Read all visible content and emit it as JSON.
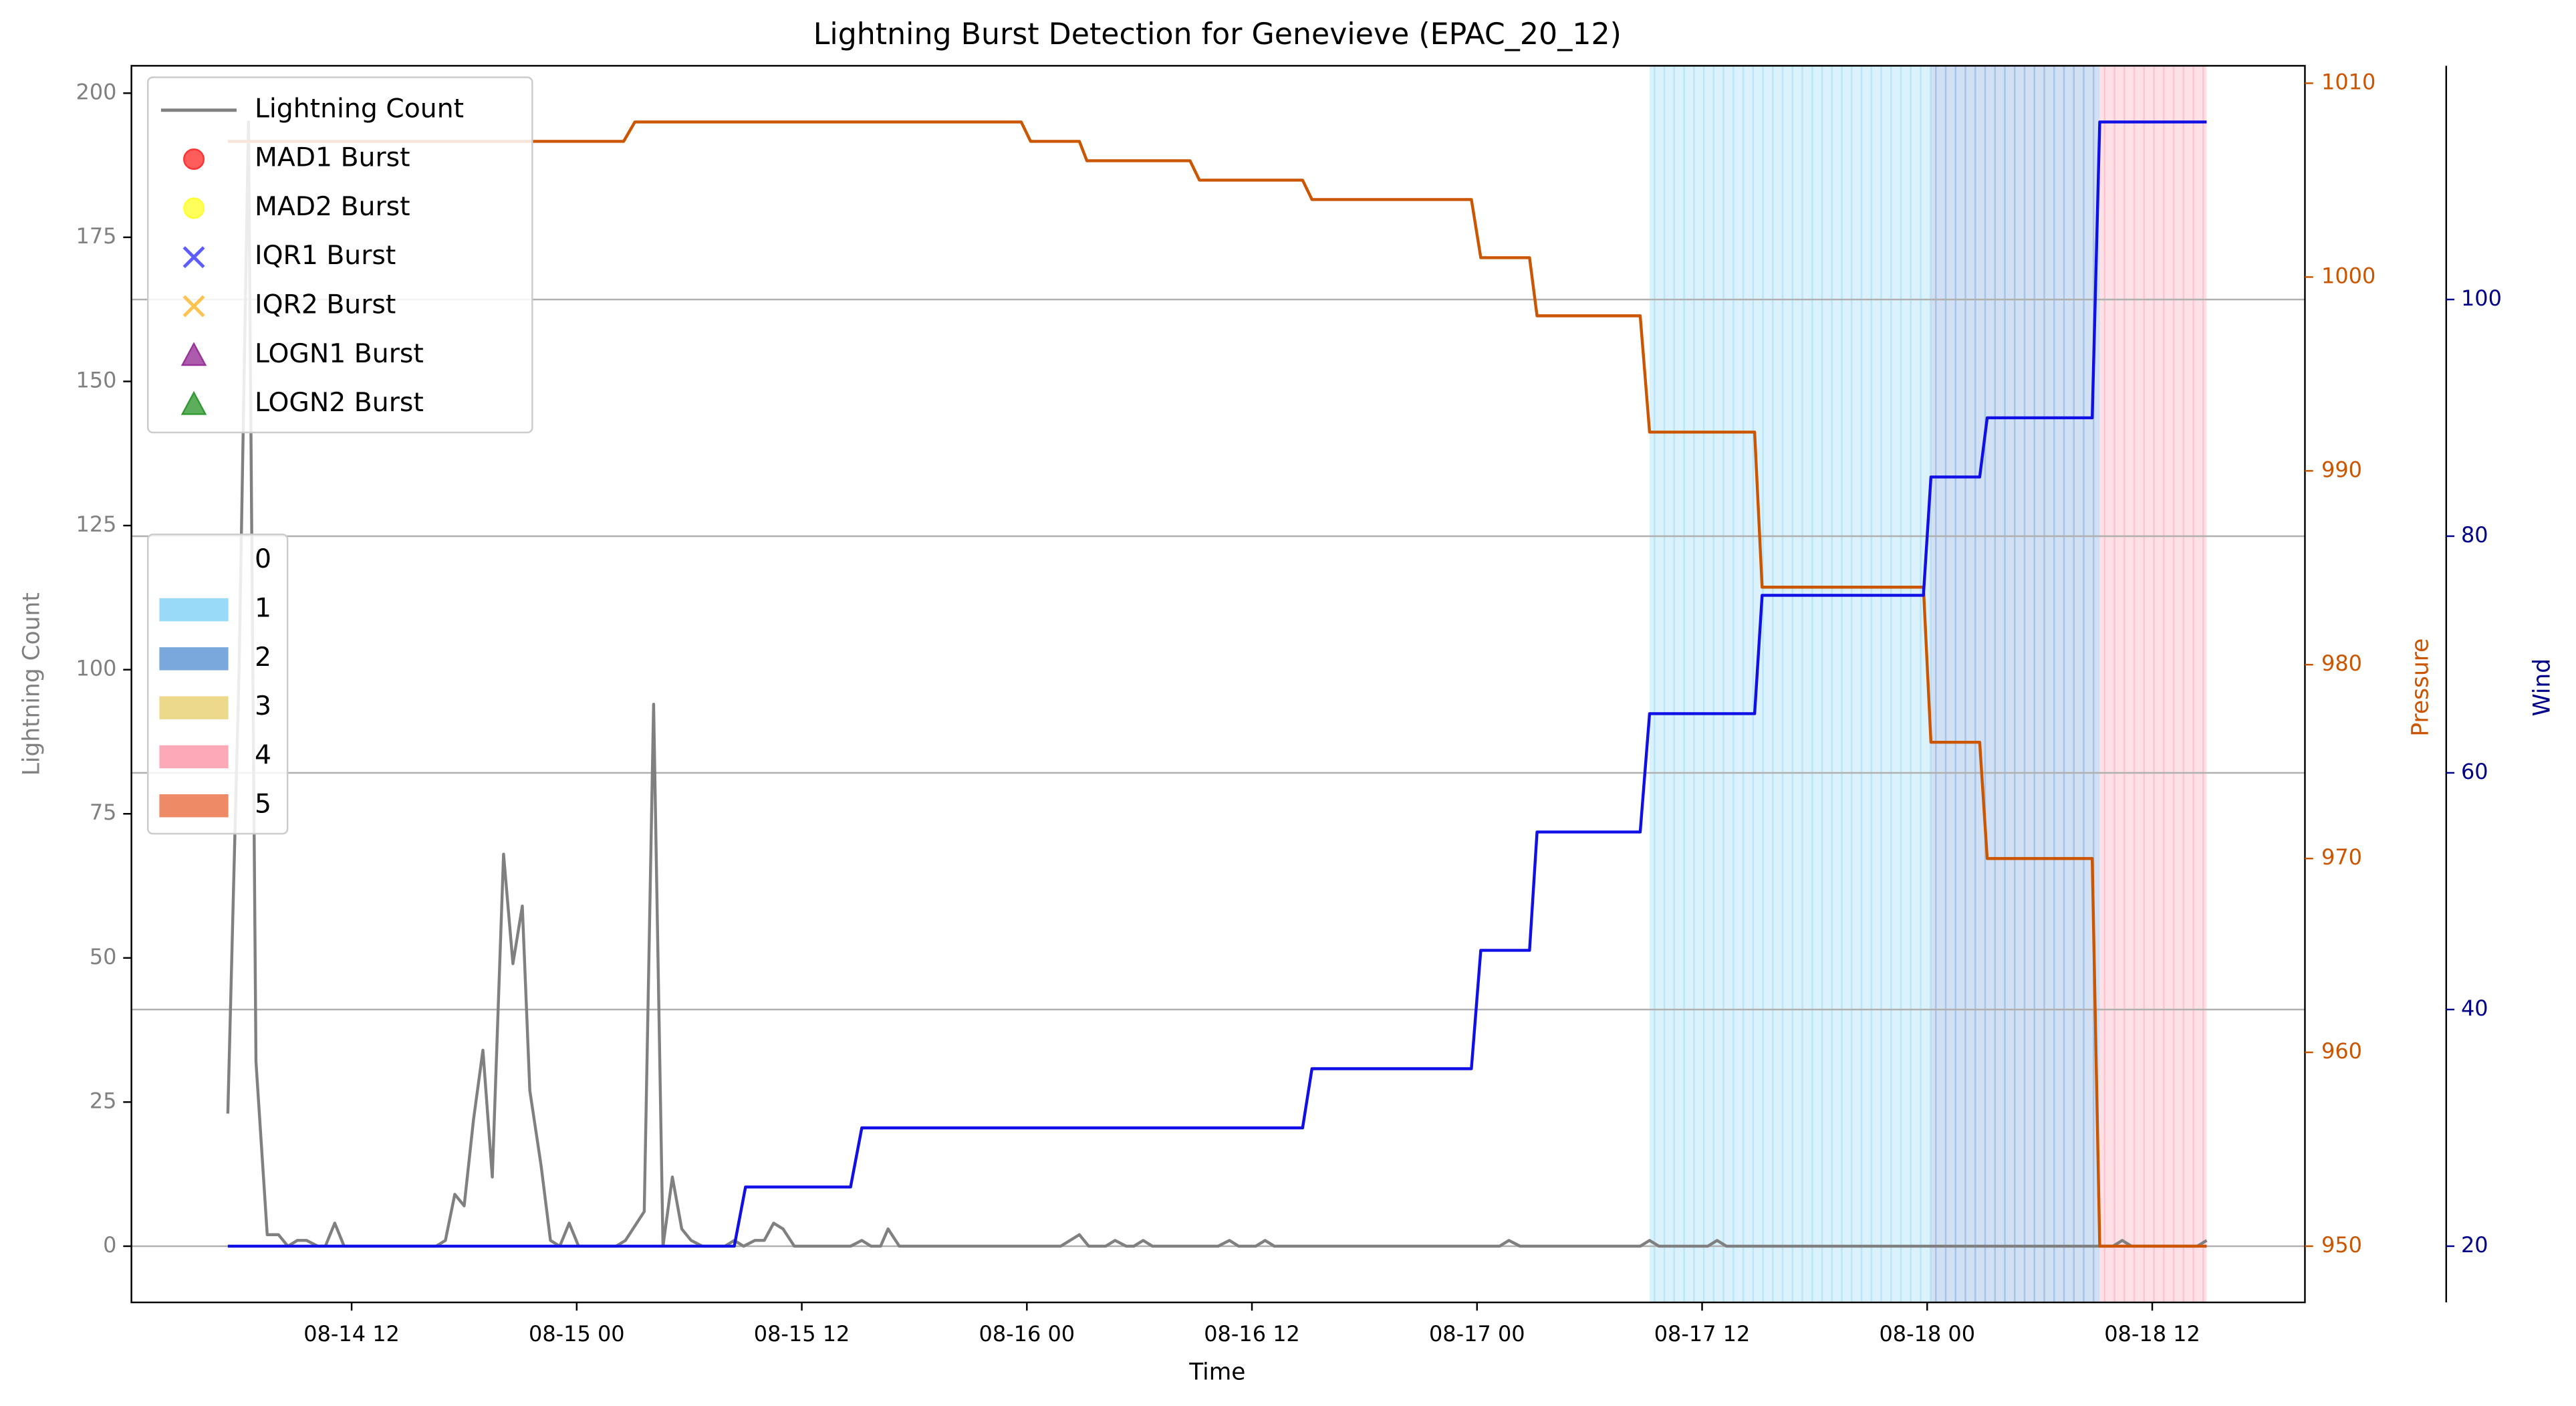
{
  "chart_data": {
    "type": "line",
    "title": "Lightning Burst Detection for Genevieve (EPAC_20_12)",
    "x_label": "Time",
    "y_label": "Lightning Count",
    "y2_label": "Pressure",
    "y3_label": "Wind",
    "xlim": [
      0.26,
      116.14
    ],
    "xticks": [
      {
        "value": 12,
        "label": "08-14 12"
      },
      {
        "value": 24,
        "label": "08-15 00"
      },
      {
        "value": 36,
        "label": "08-15 12"
      },
      {
        "value": 48,
        "label": "08-16 00"
      },
      {
        "value": 60,
        "label": "08-16 12"
      },
      {
        "value": 72,
        "label": "08-17 00"
      },
      {
        "value": 84,
        "label": "08-17 12"
      },
      {
        "value": 96,
        "label": "08-18 00"
      },
      {
        "value": 108,
        "label": "08-18 12"
      }
    ],
    "ylim": [
      -9.75,
      204.75
    ],
    "yticks": [
      0,
      25,
      50,
      75,
      100,
      125,
      150,
      175,
      200
    ],
    "y2lim": [
      947.1,
      1010.9
    ],
    "y2ticks": [
      950,
      960,
      970,
      980,
      990,
      1000,
      1010
    ],
    "y3lim": [
      15.25,
      119.75
    ],
    "y3ticks": [
      20,
      40,
      60,
      80,
      100
    ],
    "grid": true,
    "grid_axis": "y3",
    "legend": "upper left",
    "series": [
      {
        "name": "Lightning Count",
        "color": "#808080",
        "axis": "y",
        "x": [
          5.4,
          6.0,
          6.5,
          6.9,
          7.5,
          8.1,
          8.6,
          9.1,
          9.6,
          10.2,
          10.6,
          11.1,
          11.6,
          16.5,
          17.0,
          17.5,
          18.0,
          18.5,
          19.0,
          19.5,
          20.1,
          20.6,
          21.1,
          21.5,
          22.1,
          22.6,
          23.1,
          23.6,
          24.1,
          26.1,
          26.6,
          27.2,
          27.6,
          28.1,
          28.6,
          29.1,
          29.6,
          30.1,
          30.7,
          31.9,
          32.4,
          32.9,
          33.5,
          34.0,
          34.5,
          35.0,
          35.6,
          38.6,
          39.2,
          39.7,
          40.2,
          40.6,
          41.2,
          49.8,
          50.3,
          50.8,
          51.3,
          52.2,
          52.7,
          53.3,
          53.7,
          54.2,
          54.7,
          58.2,
          58.8,
          59.3,
          60.2,
          60.7,
          61.2,
          73.2,
          73.7,
          74.3,
          80.7,
          81.2,
          81.7,
          84.3,
          84.8,
          85.3,
          105.9,
          106.4,
          106.9,
          110.4,
          110.9
        ],
        "values": [
          23,
          100,
          195,
          32,
          2,
          2,
          0,
          1,
          1,
          0,
          0,
          4,
          0,
          0,
          1,
          9,
          7,
          22,
          34,
          12,
          68,
          49,
          59,
          27,
          14,
          1,
          0,
          4,
          0,
          0,
          1,
          4,
          6,
          94,
          0,
          12,
          3,
          1,
          0,
          0,
          1,
          0,
          1,
          1,
          4,
          3,
          0,
          0,
          1,
          0,
          0,
          3,
          0,
          0,
          1,
          2,
          0,
          0,
          1,
          0,
          0,
          1,
          0,
          0,
          1,
          0,
          0,
          1,
          0,
          0,
          1,
          0,
          0,
          1,
          0,
          0,
          1,
          0,
          0,
          1,
          0,
          0,
          1
        ]
      },
      {
        "color": "#cc5500",
        "axis": "y2",
        "x": [
          5.4,
          26.5,
          27.1,
          47.7,
          48.2,
          50.8,
          51.2,
          56.7,
          57.2,
          62.7,
          63.2,
          71.7,
          72.2,
          74.8,
          75.2,
          80.7,
          81.2,
          86.8,
          87.2,
          95.8,
          96.2,
          98.8,
          99.2,
          104.8,
          105.2,
          110.9
        ],
        "values": [
          1007,
          1007,
          1008,
          1008,
          1007,
          1007,
          1006,
          1006,
          1005,
          1005,
          1004,
          1004,
          1001,
          1001,
          998,
          998,
          992,
          992,
          984,
          984,
          976,
          976,
          970,
          970,
          950,
          950
        ]
      },
      {
        "color": "#1010e6",
        "axis": "y3",
        "x": [
          5.4,
          32.4,
          33.0,
          38.6,
          39.2,
          62.7,
          63.2,
          71.7,
          72.2,
          74.8,
          75.2,
          80.7,
          81.2,
          86.8,
          87.2,
          95.8,
          96.2,
          98.8,
          99.2,
          104.8,
          105.2,
          110.9
        ],
        "values": [
          20,
          20,
          25,
          25,
          30,
          30,
          35,
          35,
          45,
          45,
          55,
          55,
          65,
          65,
          75,
          75,
          85,
          85,
          90,
          90,
          115,
          115
        ]
      }
    ],
    "markers": [
      {
        "name": "MAD1 Burst",
        "color": "#ff3333",
        "marker": "circle"
      },
      {
        "name": "MAD2 Burst",
        "color": "#ffff33",
        "marker": "circle"
      },
      {
        "name": "IQR1 Burst",
        "color": "#4040ff",
        "marker": "x"
      },
      {
        "name": "IQR2 Burst",
        "color": "#ffb833",
        "marker": "x"
      },
      {
        "name": "LOGN1 Burst",
        "color": "#993399",
        "marker": "triangle"
      },
      {
        "name": "LOGN2 Burst",
        "color": "#339933",
        "marker": "triangle"
      }
    ],
    "shading": {
      "categories": [
        "0",
        "1",
        "2",
        "3",
        "4",
        "5"
      ],
      "colors": [
        "#ffffff",
        "#99daf8",
        "#7aa8dc",
        "#ecd98c",
        "#fcaab8",
        "#ee8a66"
      ],
      "spans": [
        {
          "start": 81.2,
          "end": 96.2,
          "category": 1
        },
        {
          "start": 96.2,
          "end": 105.2,
          "category": 2
        },
        {
          "start": 105.2,
          "end": 110.9,
          "category": 4
        }
      ]
    }
  }
}
